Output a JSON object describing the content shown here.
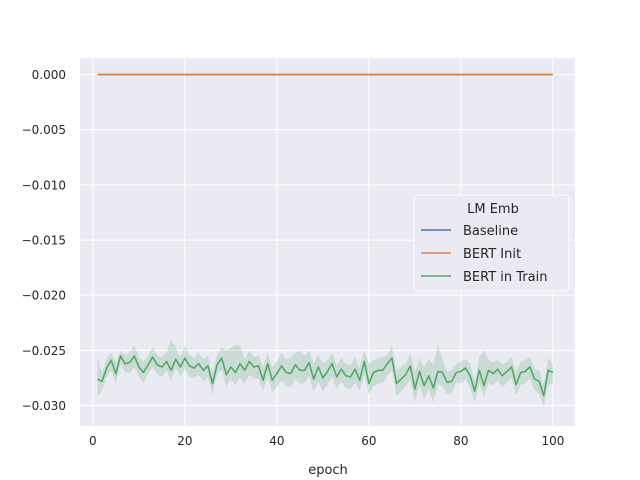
{
  "chart_data": {
    "type": "line",
    "title": "",
    "xlabel": "epoch",
    "ylabel": "",
    "xlim": [
      -2.8,
      104.8
    ],
    "ylim": [
      -0.03185,
      0.0015
    ],
    "x_ticks": [
      0,
      20,
      40,
      60,
      80,
      100
    ],
    "x_tick_labels": [
      "0",
      "20",
      "40",
      "60",
      "80",
      "100"
    ],
    "y_ticks": [
      0.0,
      -0.005,
      -0.01,
      -0.015,
      -0.02,
      -0.025,
      -0.03
    ],
    "y_tick_labels": [
      "0.000",
      "−0.005",
      "−0.010",
      "−0.015",
      "−0.020",
      "−0.025",
      "−0.030"
    ],
    "grid": true,
    "legend": {
      "title": "LM Emb",
      "placement": "right",
      "entries": [
        "Baseline",
        "BERT Init",
        "BERT in Train"
      ]
    },
    "colors": {
      "Baseline": "#4c72b0",
      "BERT Init": "#dd8452",
      "BERT in Train": "#55a868",
      "background": "#eaeaf2",
      "grid": "#ffffff"
    },
    "series": [
      {
        "name": "Baseline",
        "x_start": 1,
        "x_end": 100,
        "values": [
          0,
          0
        ],
        "x": [
          1,
          100
        ]
      },
      {
        "name": "BERT Init",
        "x": [
          1,
          100
        ],
        "values": [
          0,
          0
        ]
      },
      {
        "name": "BERT in Train",
        "x": [
          1,
          2,
          3,
          4,
          5,
          6,
          7,
          8,
          9,
          10,
          11,
          12,
          13,
          14,
          15,
          16,
          17,
          18,
          19,
          20,
          21,
          22,
          23,
          24,
          25,
          26,
          27,
          28,
          29,
          30,
          31,
          32,
          33,
          34,
          35,
          36,
          37,
          38,
          39,
          40,
          41,
          42,
          43,
          44,
          45,
          46,
          47,
          48,
          49,
          50,
          51,
          52,
          53,
          54,
          55,
          56,
          57,
          58,
          59,
          60,
          61,
          62,
          63,
          64,
          65,
          66,
          67,
          68,
          69,
          70,
          71,
          72,
          73,
          74,
          75,
          76,
          77,
          78,
          79,
          80,
          81,
          82,
          83,
          84,
          85,
          86,
          87,
          88,
          89,
          90,
          91,
          92,
          93,
          94,
          95,
          96,
          97,
          98,
          99,
          100
        ],
        "values": [
          -0.0276,
          -0.0278,
          -0.0266,
          -0.0259,
          -0.0271,
          -0.0255,
          -0.0262,
          -0.0261,
          -0.0255,
          -0.0265,
          -0.027,
          -0.0263,
          -0.0256,
          -0.0263,
          -0.0265,
          -0.026,
          -0.0268,
          -0.0258,
          -0.0265,
          -0.0257,
          -0.0264,
          -0.0266,
          -0.0262,
          -0.0268,
          -0.0264,
          -0.028,
          -0.0263,
          -0.0257,
          -0.0272,
          -0.0265,
          -0.027,
          -0.0262,
          -0.0268,
          -0.026,
          -0.0265,
          -0.0264,
          -0.0277,
          -0.0262,
          -0.0277,
          -0.0271,
          -0.0264,
          -0.027,
          -0.0271,
          -0.0263,
          -0.0268,
          -0.0268,
          -0.0261,
          -0.0276,
          -0.0265,
          -0.0275,
          -0.0269,
          -0.0262,
          -0.0274,
          -0.0267,
          -0.0273,
          -0.0274,
          -0.0267,
          -0.0277,
          -0.026,
          -0.028,
          -0.027,
          -0.0268,
          -0.0268,
          -0.0262,
          -0.0257,
          -0.028,
          -0.0276,
          -0.0272,
          -0.0264,
          -0.0285,
          -0.0269,
          -0.0282,
          -0.0273,
          -0.0284,
          -0.0269,
          -0.027,
          -0.0279,
          -0.0278,
          -0.027,
          -0.0269,
          -0.0266,
          -0.0273,
          -0.0287,
          -0.0268,
          -0.0282,
          -0.0268,
          -0.0271,
          -0.0267,
          -0.0273,
          -0.0269,
          -0.0265,
          -0.0281,
          -0.027,
          -0.0269,
          -0.0265,
          -0.0276,
          -0.0278,
          -0.0291,
          -0.0268,
          -0.027
        ],
        "ci_upper": [
          -0.0256,
          -0.027,
          -0.0258,
          -0.0252,
          -0.0261,
          -0.025,
          -0.0254,
          -0.0252,
          -0.0245,
          -0.0256,
          -0.026,
          -0.0255,
          -0.0247,
          -0.0254,
          -0.0256,
          -0.0252,
          -0.024,
          -0.0247,
          -0.0256,
          -0.0246,
          -0.0254,
          -0.0257,
          -0.0252,
          -0.0258,
          -0.0255,
          -0.027,
          -0.0254,
          -0.0247,
          -0.025,
          -0.0248,
          -0.0245,
          -0.0246,
          -0.0258,
          -0.025,
          -0.0256,
          -0.0255,
          -0.0265,
          -0.0252,
          -0.0265,
          -0.026,
          -0.0252,
          -0.0258,
          -0.0257,
          -0.0252,
          -0.025,
          -0.0255,
          -0.025,
          -0.0262,
          -0.0254,
          -0.0262,
          -0.0259,
          -0.0252,
          -0.0264,
          -0.0257,
          -0.0262,
          -0.0263,
          -0.0256,
          -0.0266,
          -0.025,
          -0.0262,
          -0.0259,
          -0.0257,
          -0.0256,
          -0.0254,
          -0.0245,
          -0.0268,
          -0.0265,
          -0.0262,
          -0.0253,
          -0.0269,
          -0.0257,
          -0.0265,
          -0.0258,
          -0.0263,
          -0.0245,
          -0.0258,
          -0.0269,
          -0.0268,
          -0.0262,
          -0.026,
          -0.0258,
          -0.0262,
          -0.0278,
          -0.0256,
          -0.025,
          -0.0258,
          -0.0261,
          -0.0258,
          -0.0263,
          -0.026,
          -0.0256,
          -0.027,
          -0.026,
          -0.0259,
          -0.0256,
          -0.0267,
          -0.0268,
          -0.0281,
          -0.0257,
          -0.0262
        ],
        "ci_lower": [
          -0.0292,
          -0.0286,
          -0.0274,
          -0.0268,
          -0.028,
          -0.0262,
          -0.027,
          -0.027,
          -0.0265,
          -0.0274,
          -0.028,
          -0.0271,
          -0.0265,
          -0.0272,
          -0.0274,
          -0.0268,
          -0.0278,
          -0.0266,
          -0.0274,
          -0.0267,
          -0.0274,
          -0.0275,
          -0.0272,
          -0.0278,
          -0.0274,
          -0.029,
          -0.0272,
          -0.0267,
          -0.0283,
          -0.0276,
          -0.0281,
          -0.0275,
          -0.028,
          -0.0272,
          -0.0276,
          -0.0275,
          -0.0287,
          -0.0273,
          -0.0288,
          -0.0283,
          -0.0277,
          -0.0282,
          -0.0283,
          -0.0276,
          -0.028,
          -0.028,
          -0.0273,
          -0.0288,
          -0.0278,
          -0.0287,
          -0.0281,
          -0.0274,
          -0.0285,
          -0.0278,
          -0.0284,
          -0.0285,
          -0.0279,
          -0.0287,
          -0.0272,
          -0.029,
          -0.0282,
          -0.028,
          -0.028,
          -0.0273,
          -0.0268,
          -0.0292,
          -0.0287,
          -0.0283,
          -0.0276,
          -0.0297,
          -0.0282,
          -0.0294,
          -0.0285,
          -0.0297,
          -0.0281,
          -0.0282,
          -0.029,
          -0.0289,
          -0.0279,
          -0.028,
          -0.0276,
          -0.0284,
          -0.0297,
          -0.028,
          -0.0293,
          -0.0279,
          -0.0282,
          -0.0277,
          -0.0284,
          -0.0279,
          -0.0275,
          -0.0291,
          -0.0281,
          -0.028,
          -0.0276,
          -0.0286,
          -0.0289,
          -0.0301,
          -0.0281,
          -0.028
        ]
      }
    ]
  }
}
